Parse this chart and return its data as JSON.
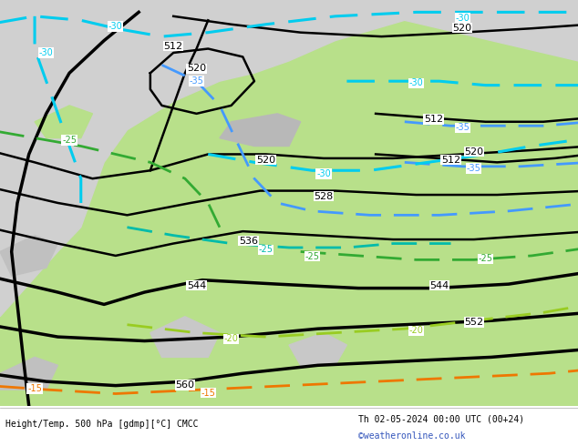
{
  "title_left": "Height/Temp. 500 hPa [gdmp][°C] CMCC",
  "title_right": "Th 02-05-2024 00:00 UTC (00+24)",
  "credit": "©weatheronline.co.uk",
  "fig_width": 6.34,
  "fig_height": 4.9,
  "dpi": 100,
  "bg_gray": "#d8d8d8",
  "land_green": "#b8e08a",
  "land_light_green": "#d0ec9a",
  "land_gray_light": "#c8c8c8",
  "sea_color": "#d0d0d0",
  "black": "#000000",
  "cyan": "#00ccee",
  "blue": "#4499ff",
  "green_dark": "#33aa33",
  "green_yellow": "#99cc22",
  "orange": "#ee7700",
  "label_fs": 7,
  "footer_fs": 7,
  "credit_color": "#3355bb",
  "white": "#ffffff"
}
